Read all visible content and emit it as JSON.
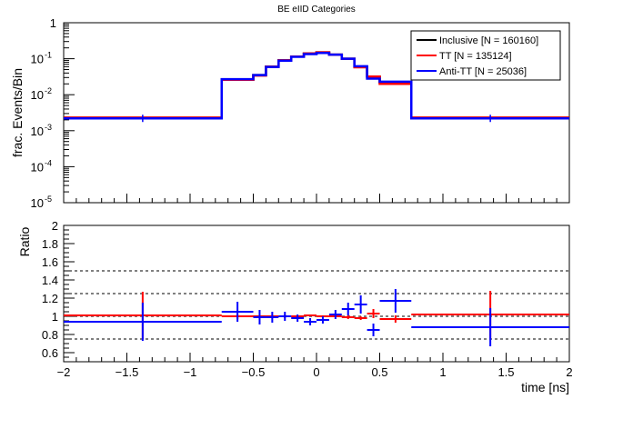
{
  "chart_data": [
    {
      "type": "step-histogram",
      "title": "BE eIID Categories",
      "ylabel": "frac. Events/Bin",
      "yscale": "log",
      "ylim": [
        1e-05,
        1
      ],
      "xlim": [
        -2,
        2
      ],
      "grid": false,
      "legend_position": "top-right",
      "y_tick_labels": [
        "1",
        "10",
        "10",
        "10",
        "10",
        "10"
      ],
      "y_tick_exponents": [
        "",
        "-1",
        "-2",
        "-3",
        "-4",
        "-5"
      ],
      "bin_edges": [
        -2,
        -0.75,
        -0.5,
        -0.4,
        -0.3,
        -0.2,
        -0.1,
        0,
        0.1,
        0.2,
        0.3,
        0.4,
        0.5,
        0.75,
        2
      ],
      "series": [
        {
          "name": "Inclusive [N = 160160]",
          "color": "#000000",
          "values": [
            0.0023,
            0.026,
            0.035,
            0.06,
            0.09,
            0.115,
            0.14,
            0.15,
            0.13,
            0.1,
            0.06,
            0.032,
            0.022,
            0.0023
          ]
        },
        {
          "name": "TT [N = 135124]",
          "color": "#ff0000",
          "values": [
            0.0023,
            0.026,
            0.034,
            0.06,
            0.09,
            0.115,
            0.14,
            0.15,
            0.13,
            0.1,
            0.058,
            0.032,
            0.02,
            0.0023
          ]
        },
        {
          "name": "Anti-TT [N = 25036]",
          "color": "#0000ff",
          "values": [
            0.0022,
            0.027,
            0.035,
            0.059,
            0.088,
            0.113,
            0.135,
            0.145,
            0.13,
            0.1,
            0.062,
            0.028,
            0.023,
            0.0022
          ]
        }
      ]
    },
    {
      "type": "ratio-errorbar",
      "ylabel": "Ratio",
      "xlabel": "time [ns]",
      "ylim": [
        0.5,
        2
      ],
      "xlim": [
        -2,
        2
      ],
      "x_ticks": [
        -2,
        -1.5,
        -1,
        -0.5,
        0,
        0.5,
        1,
        1.5,
        2
      ],
      "x_tick_labels": [
        "−2",
        "−1.5",
        "−1",
        "−0.5",
        "0",
        "0.5",
        "1",
        "1.5",
        "2"
      ],
      "y_ticks": [
        0.6,
        0.8,
        1,
        1.2,
        1.4,
        1.6,
        1.8,
        2
      ],
      "y_tick_labels": [
        "0.6",
        "0.8",
        "1",
        "1.2",
        "1.4",
        "1.6",
        "1.8",
        "2"
      ],
      "reference_lines": [
        0.75,
        1.0,
        1.25,
        1.5
      ],
      "series": [
        {
          "name": "TT",
          "color": "#ff0000",
          "x": [
            -1.375,
            -0.625,
            -0.45,
            -0.35,
            -0.25,
            -0.15,
            -0.05,
            0.05,
            0.15,
            0.25,
            0.35,
            0.45,
            0.625,
            1.375
          ],
          "xerr": [
            0.625,
            0.125,
            0.05,
            0.05,
            0.05,
            0.05,
            0.05,
            0.05,
            0.05,
            0.05,
            0.05,
            0.05,
            0.125,
            0.625
          ],
          "y": [
            1.01,
            1.0,
            1.0,
            1.0,
            1.0,
            1.0,
            1.01,
            1.0,
            1.0,
            0.99,
            0.98,
            1.03,
            0.97,
            1.02
          ],
          "yerr": [
            0.26,
            0.03,
            0.02,
            0.02,
            0.02,
            0.01,
            0.01,
            0.01,
            0.01,
            0.02,
            0.02,
            0.05,
            0.04,
            0.26
          ]
        },
        {
          "name": "Anti-TT",
          "color": "#0000ff",
          "x": [
            -1.375,
            -0.625,
            -0.45,
            -0.35,
            -0.25,
            -0.15,
            -0.05,
            0.05,
            0.15,
            0.25,
            0.35,
            0.45,
            0.625,
            1.375
          ],
          "xerr": [
            0.625,
            0.125,
            0.05,
            0.05,
            0.05,
            0.05,
            0.05,
            0.05,
            0.05,
            0.05,
            0.05,
            0.05,
            0.125,
            0.625
          ],
          "y": [
            0.94,
            1.05,
            0.99,
            0.99,
            1.0,
            0.98,
            0.94,
            0.96,
            1.02,
            1.08,
            1.13,
            0.85,
            1.17,
            0.88
          ],
          "yerr": [
            0.21,
            0.11,
            0.08,
            0.06,
            0.05,
            0.04,
            0.04,
            0.04,
            0.05,
            0.07,
            0.1,
            0.07,
            0.13,
            0.21
          ]
        }
      ]
    }
  ]
}
